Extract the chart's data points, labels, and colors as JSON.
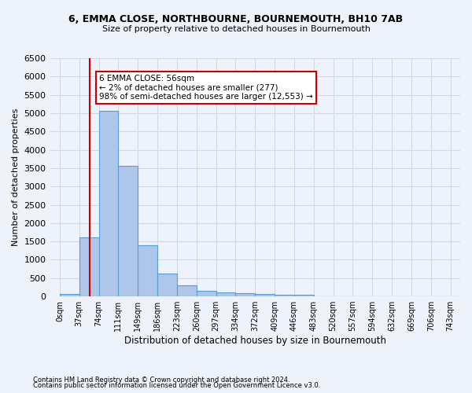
{
  "title1": "6, EMMA CLOSE, NORTHBOURNE, BOURNEMOUTH, BH10 7AB",
  "title2": "Size of property relative to detached houses in Bournemouth",
  "xlabel": "Distribution of detached houses by size in Bournemouth",
  "ylabel": "Number of detached properties",
  "footnote1": "Contains HM Land Registry data © Crown copyright and database right 2024.",
  "footnote2": "Contains public sector information licensed under the Open Government Licence v3.0.",
  "bar_labels": [
    "0sqm",
    "37sqm",
    "74sqm",
    "111sqm",
    "149sqm",
    "186sqm",
    "223sqm",
    "260sqm",
    "297sqm",
    "334sqm",
    "372sqm",
    "409sqm",
    "446sqm",
    "483sqm",
    "520sqm",
    "557sqm",
    "594sqm",
    "632sqm",
    "669sqm",
    "706sqm",
    "743sqm"
  ],
  "bar_values": [
    70,
    1620,
    5070,
    3570,
    1400,
    620,
    295,
    155,
    110,
    80,
    60,
    55,
    50,
    0,
    0,
    0,
    0,
    0,
    0,
    0,
    0
  ],
  "bar_color": "#aec6e8",
  "bar_edgecolor": "#5a9fd4",
  "grid_color": "#d0d8e8",
  "annotation_line1": "6 EMMA CLOSE: 56sqm",
  "annotation_line2": "← 2% of detached houses are smaller (277)",
  "annotation_line3": "98% of semi-detached houses are larger (12,553) →",
  "annotation_box_color": "#ffffff",
  "annotation_box_edgecolor": "#cc0000",
  "vline_x": 56,
  "vline_color": "#cc0000",
  "bin_width": 37,
  "ylim": [
    0,
    6500
  ],
  "yticks": [
    0,
    500,
    1000,
    1500,
    2000,
    2500,
    3000,
    3500,
    4000,
    4500,
    5000,
    5500,
    6000,
    6500
  ],
  "bg_color": "#eef2fa"
}
